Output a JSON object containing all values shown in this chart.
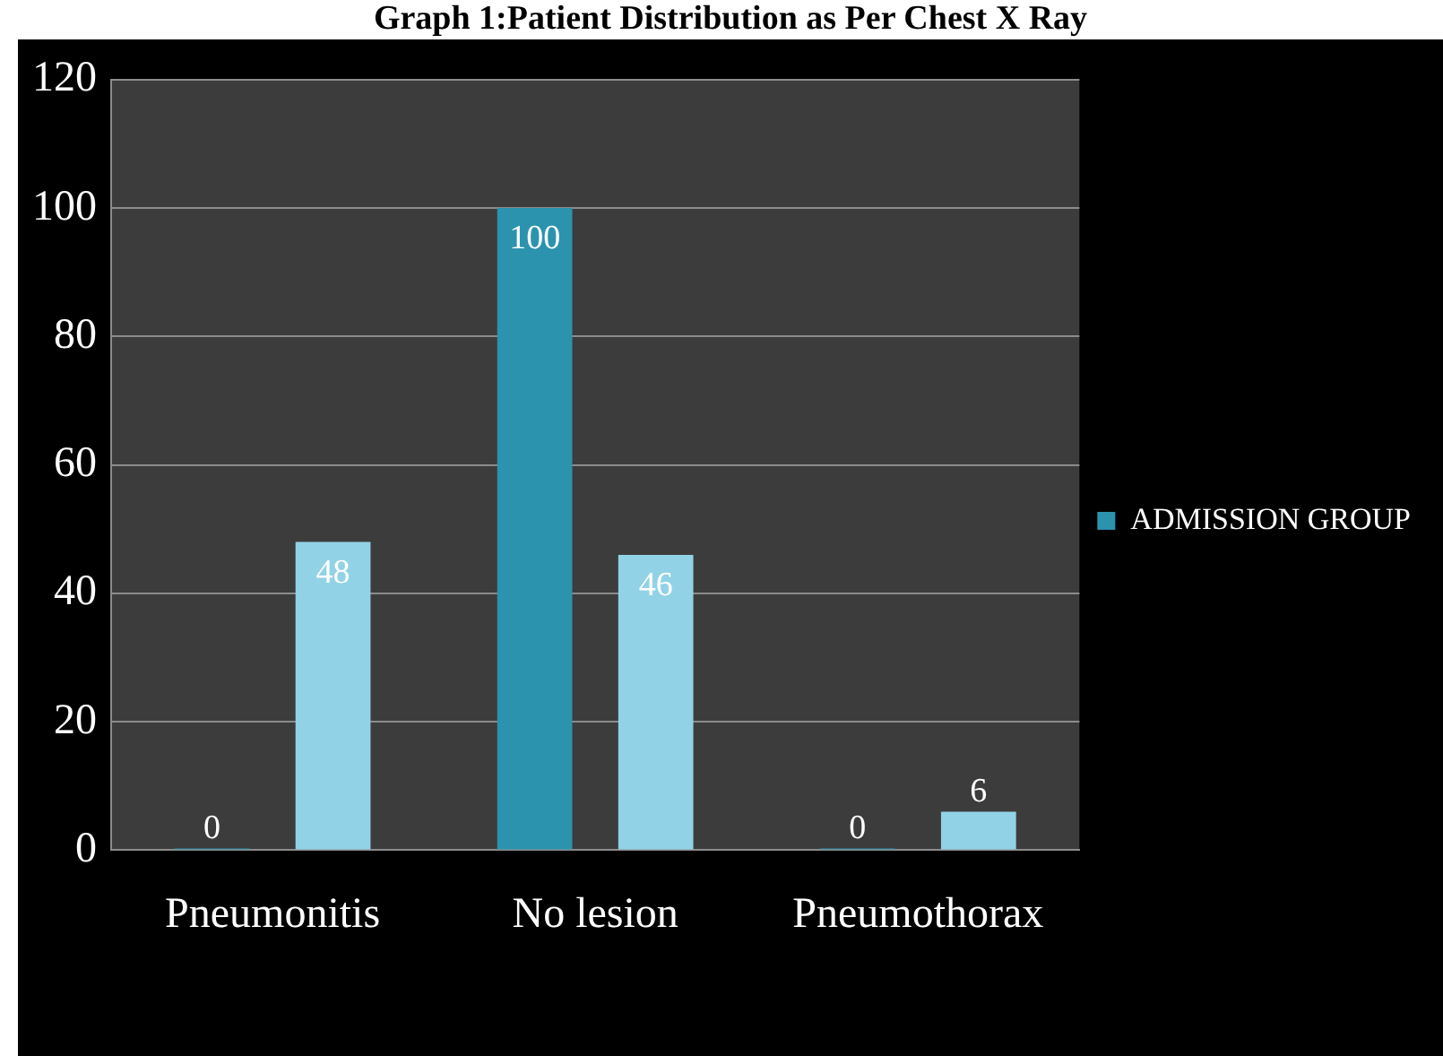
{
  "chart_data": {
    "type": "bar",
    "title": "Graph 1:Patient Distribution as Per Chest X Ray",
    "categories": [
      "Pneumonitis",
      "No lesion",
      "Pneumothorax"
    ],
    "series": [
      {
        "name": "ADMISSION GROUP",
        "color": "#2b93ad",
        "values": [
          0,
          100,
          0
        ]
      },
      {
        "color": "#92d2e6",
        "values": [
          48,
          46,
          6
        ]
      }
    ],
    "ylim": [
      0,
      120
    ],
    "yticks": [
      0,
      20,
      40,
      60,
      80,
      100,
      120
    ],
    "grid": "y",
    "legend": "right",
    "data_labels": true
  }
}
